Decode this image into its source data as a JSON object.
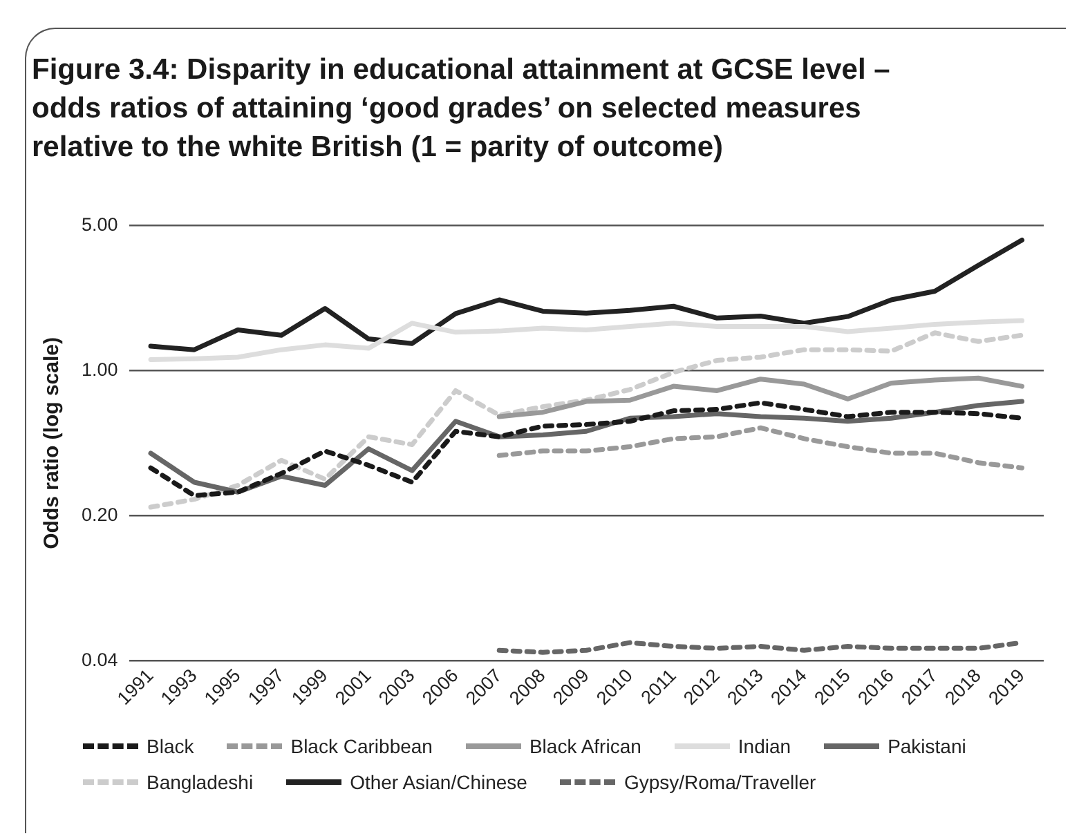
{
  "chart_data": {
    "type": "line",
    "title": "Figure 3.4: Disparity in educational attainment at GCSE level – odds ratios of attaining ‘good grades’ on selected measures relative to the white British (1 = parity of outcome)",
    "ylabel": "Odds ratio (log scale)",
    "categories": [
      "1991",
      "1993",
      "1995",
      "1997",
      "1999",
      "2001",
      "2003",
      "2006",
      "2007",
      "2008",
      "2009",
      "2010",
      "2011",
      "2012",
      "2013",
      "2014",
      "2015",
      "2016",
      "2017",
      "2018",
      "2019"
    ],
    "log": "y",
    "ylim": [
      0.04,
      5
    ],
    "yticks": [
      {
        "value": 0.04,
        "label": "0.04"
      },
      {
        "value": 0.2,
        "label": "0.20"
      },
      {
        "value": 1,
        "label": "1.00"
      },
      {
        "value": 5,
        "label": "5.00"
      }
    ],
    "grid": "y",
    "legend": "bottom",
    "series": [
      {
        "name": "Black",
        "color": "#1a1a1a",
        "line_style": "dashed",
        "values": [
          0.34,
          0.25,
          0.26,
          0.32,
          0.41,
          0.35,
          0.29,
          0.51,
          0.48,
          0.54,
          0.55,
          0.57,
          0.64,
          0.65,
          0.7,
          0.65,
          0.6,
          0.63,
          0.63,
          0.62,
          0.59
        ]
      },
      {
        "name": "Black Caribbean",
        "color": "#999999",
        "line_style": "dashed",
        "values": [
          null,
          null,
          null,
          null,
          null,
          null,
          null,
          null,
          0.39,
          0.41,
          0.41,
          0.43,
          0.47,
          0.48,
          0.53,
          0.47,
          0.43,
          0.4,
          0.4,
          0.36,
          0.34
        ]
      },
      {
        "name": "Black African",
        "color": "#999999",
        "line_style": "solid",
        "values": [
          null,
          null,
          null,
          null,
          null,
          null,
          null,
          null,
          0.6,
          0.63,
          0.71,
          0.72,
          0.84,
          0.8,
          0.91,
          0.86,
          0.73,
          0.87,
          0.9,
          0.92,
          0.84
        ]
      },
      {
        "name": "Indian",
        "color": "#dddddd",
        "line_style": "solid",
        "values": [
          1.13,
          1.14,
          1.16,
          1.26,
          1.33,
          1.28,
          1.69,
          1.53,
          1.55,
          1.6,
          1.57,
          1.63,
          1.69,
          1.63,
          1.63,
          1.63,
          1.54,
          1.6,
          1.67,
          1.71,
          1.74
        ]
      },
      {
        "name": "Pakistani",
        "color": "#666666",
        "line_style": "solid",
        "values": [
          0.4,
          0.29,
          0.26,
          0.31,
          0.28,
          0.42,
          0.33,
          0.57,
          0.48,
          0.49,
          0.51,
          0.59,
          0.6,
          0.62,
          0.6,
          0.59,
          0.57,
          0.59,
          0.63,
          0.68,
          0.71
        ]
      },
      {
        "name": "Bangladeshi",
        "color": "#cccccc",
        "line_style": "dashed",
        "values": [
          0.22,
          0.24,
          0.28,
          0.37,
          0.3,
          0.48,
          0.44,
          0.8,
          0.61,
          0.67,
          0.72,
          0.81,
          0.98,
          1.12,
          1.16,
          1.26,
          1.26,
          1.24,
          1.52,
          1.38,
          1.48
        ]
      },
      {
        "name": "Other Asian/Chinese",
        "color": "#222222",
        "line_style": "solid",
        "values": [
          1.31,
          1.26,
          1.57,
          1.48,
          1.99,
          1.42,
          1.35,
          1.88,
          2.19,
          1.93,
          1.89,
          1.95,
          2.04,
          1.79,
          1.83,
          1.69,
          1.82,
          2.19,
          2.41,
          3.21,
          4.25
        ]
      },
      {
        "name": "Gypsy/Roma/Traveller",
        "color": "#666666",
        "line_style": "dashed",
        "values": [
          null,
          null,
          null,
          null,
          null,
          null,
          null,
          null,
          0.045,
          0.044,
          0.045,
          0.049,
          0.047,
          0.046,
          0.047,
          0.045,
          0.047,
          0.046,
          0.046,
          0.046,
          0.049
        ]
      }
    ]
  }
}
